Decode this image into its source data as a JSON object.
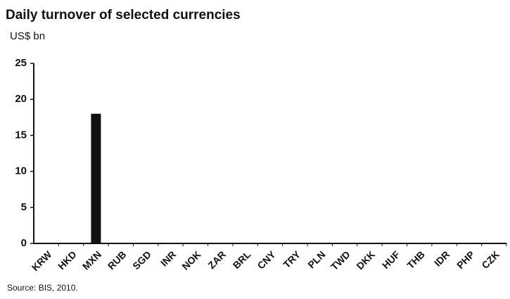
{
  "chart_data": {
    "type": "bar",
    "title": "Daily turnover of selected currencies",
    "subtitle": "US$ bn",
    "categories": [
      "KRW",
      "HKD",
      "MXN",
      "RUB",
      "SGD",
      "INR",
      "NOK",
      "ZAR",
      "BRL",
      "CNY",
      "TRY",
      "PLN",
      "TWD",
      "DKK",
      "HUF",
      "THB",
      "IDR",
      "PHP",
      "CZK"
    ],
    "values": [
      0,
      0,
      18,
      0,
      0,
      0,
      0,
      0,
      0,
      0,
      0,
      0,
      0,
      0,
      0,
      0,
      0,
      0,
      0
    ],
    "color": "#111111",
    "ylim": [
      0,
      25
    ],
    "yticks": [
      0,
      5,
      10,
      15,
      20,
      25
    ],
    "grid": false,
    "source": "Source: BIS, 2010."
  }
}
